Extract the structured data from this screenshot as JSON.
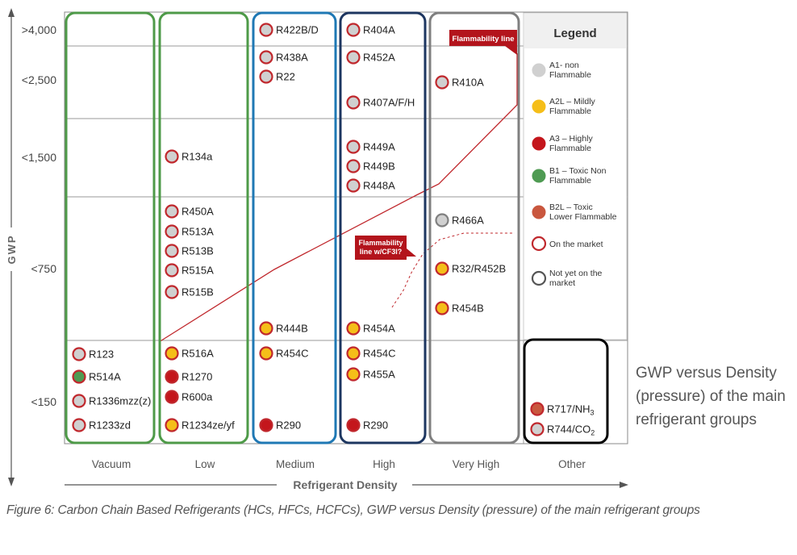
{
  "chart_data": {
    "type": "table",
    "y_axis_label": "GWP",
    "x_axis_label": "Refrigerant Density",
    "gwp_levels": [
      ">4,000",
      "<2,500",
      "<1,500",
      "<750",
      "<150"
    ],
    "density_columns": [
      {
        "name": "Vacuum",
        "color": "#4e9a48"
      },
      {
        "name": "Low",
        "color": "#4e9a48"
      },
      {
        "name": "Medium",
        "color": "#1f78b4"
      },
      {
        "name": "High",
        "color": "#1d3660"
      },
      {
        "name": "Very High",
        "color": "#7f7f7f"
      },
      {
        "name": "Other",
        "color": "#000000"
      }
    ],
    "refrigerants": [
      {
        "name": "R123",
        "column": "Vacuum",
        "gwp": "<150",
        "class": "A1",
        "market": "on"
      },
      {
        "name": "R514A",
        "column": "Vacuum",
        "gwp": "<150",
        "class": "B1",
        "market": "on"
      },
      {
        "name": "R1336mzz(z)",
        "column": "Vacuum",
        "gwp": "<150",
        "class": "A1",
        "market": "on"
      },
      {
        "name": "R1233zd",
        "column": "Vacuum",
        "gwp": "<150",
        "class": "A1",
        "market": "on"
      },
      {
        "name": "R134a",
        "column": "Low",
        "gwp": "<1,500",
        "class": "A1",
        "market": "on"
      },
      {
        "name": "R450A",
        "column": "Low",
        "gwp": "<750",
        "class": "A1",
        "market": "on"
      },
      {
        "name": "R513A",
        "column": "Low",
        "gwp": "<750",
        "class": "A1",
        "market": "on"
      },
      {
        "name": "R513B",
        "column": "Low",
        "gwp": "<750",
        "class": "A1",
        "market": "on"
      },
      {
        "name": "R515A",
        "column": "Low",
        "gwp": "<750",
        "class": "A1",
        "market": "on"
      },
      {
        "name": "R515B",
        "column": "Low",
        "gwp": "<750",
        "class": "A1",
        "market": "on"
      },
      {
        "name": "R516A",
        "column": "Low",
        "gwp": "<150",
        "class": "A2L",
        "market": "on"
      },
      {
        "name": "R1270",
        "column": "Low",
        "gwp": "<150",
        "class": "A3",
        "market": "on"
      },
      {
        "name": "R600a",
        "column": "Low",
        "gwp": "<150",
        "class": "A3",
        "market": "on"
      },
      {
        "name": "R1234ze/yf",
        "column": "Low",
        "gwp": "<150",
        "class": "A2L",
        "market": "on"
      },
      {
        "name": "R422B/D",
        "column": "Medium",
        "gwp": ">4,000",
        "class": "A1",
        "market": "on"
      },
      {
        "name": "R438A",
        "column": "Medium",
        "gwp": "<2,500",
        "class": "A1",
        "market": "on"
      },
      {
        "name": "R22",
        "column": "Medium",
        "gwp": "<2,500",
        "class": "A1",
        "market": "on"
      },
      {
        "name": "R444B",
        "column": "Medium",
        "gwp": "<750",
        "class": "A2L",
        "market": "on"
      },
      {
        "name": "R454C",
        "column": "Medium",
        "gwp": "<150",
        "class": "A2L",
        "market": "on"
      },
      {
        "name": "R290",
        "column": "Medium",
        "gwp": "<150",
        "class": "A3",
        "market": "on"
      },
      {
        "name": "R404A",
        "column": "High",
        "gwp": ">4,000",
        "class": "A1",
        "market": "on"
      },
      {
        "name": "R452A",
        "column": "High",
        "gwp": "<2,500",
        "class": "A1",
        "market": "on"
      },
      {
        "name": "R407A/F/H",
        "column": "High",
        "gwp": "<2,500",
        "class": "A1",
        "market": "on"
      },
      {
        "name": "R449A",
        "column": "High",
        "gwp": "<1,500",
        "class": "A1",
        "market": "on"
      },
      {
        "name": "R449B",
        "column": "High",
        "gwp": "<1,500",
        "class": "A1",
        "market": "on"
      },
      {
        "name": "R448A",
        "column": "High",
        "gwp": "<1,500",
        "class": "A1",
        "market": "on"
      },
      {
        "name": "R454A",
        "column": "High",
        "gwp": "<750",
        "class": "A2L",
        "market": "on"
      },
      {
        "name": "R454C",
        "column": "High",
        "gwp": "<150",
        "class": "A2L",
        "market": "on"
      },
      {
        "name": "R455A",
        "column": "High",
        "gwp": "<150",
        "class": "A2L",
        "market": "on"
      },
      {
        "name": "R290",
        "column": "High",
        "gwp": "<150",
        "class": "A3",
        "market": "on"
      },
      {
        "name": "R410A",
        "column": "Very High",
        "gwp": "<2,500",
        "class": "A1",
        "market": "on"
      },
      {
        "name": "R466A",
        "column": "Very High",
        "gwp": "<750",
        "class": "A1",
        "market": "not_yet"
      },
      {
        "name": "R32/R452B",
        "column": "Very High",
        "gwp": "<750",
        "class": "A2L",
        "market": "on"
      },
      {
        "name": "R454B",
        "column": "Very High",
        "gwp": "<750",
        "class": "A2L",
        "market": "on"
      },
      {
        "name": "R717/NH",
        "sub": "3",
        "column": "Other",
        "gwp": "<150",
        "class": "B2L",
        "market": "on"
      },
      {
        "name": "R744/CO",
        "sub": "2",
        "column": "Other",
        "gwp": "<150",
        "class": "A1",
        "market": "on"
      }
    ],
    "legend": {
      "title": "Legend",
      "items": [
        {
          "key": "A1",
          "lines": [
            "A1- non",
            "Flammable"
          ],
          "fill": "#d0d0d0",
          "ring": "#d0d0d0"
        },
        {
          "key": "A2L",
          "lines": [
            "A2L – Mildly",
            "Flammable"
          ],
          "fill": "#f5be19",
          "ring": "#f5be19"
        },
        {
          "key": "A3",
          "lines": [
            "A3 – Highly",
            "Flammable"
          ],
          "fill": "#c4161c",
          "ring": "#c4161c"
        },
        {
          "key": "B1",
          "lines": [
            "B1 – Toxic Non",
            "Flammable"
          ],
          "fill": "#4f9b53",
          "ring": "#4f9b53"
        },
        {
          "key": "B2L",
          "lines": [
            "B2L – Toxic",
            "Lower Flammable"
          ],
          "fill": "#c9573e",
          "ring": "#c9573e"
        },
        {
          "key": "on",
          "lines": [
            "On the market"
          ],
          "fill": "#ffffff",
          "ring": "#c0282d"
        },
        {
          "key": "not_yet",
          "lines": [
            "Not yet on the",
            "market"
          ],
          "fill": "#ffffff",
          "ring": "#555555"
        }
      ]
    },
    "annotations": {
      "flammability_line": "Flammability line",
      "flammability_line_cf3i": [
        "Flammability",
        "line w/CF3I?"
      ]
    },
    "colors": {
      "market_ring": "#c0282d",
      "not_yet_ring": "#808080",
      "annotation_bg": "#b3141c"
    }
  },
  "captions": {
    "side": "GWP versus Density (pressure) of the main refrigerant groups",
    "figure": "Figure 6: Carbon Chain Based Refrigerants (HCs, HFCs, HCFCs), GWP versus Density (pressure) of the main refrigerant groups"
  }
}
